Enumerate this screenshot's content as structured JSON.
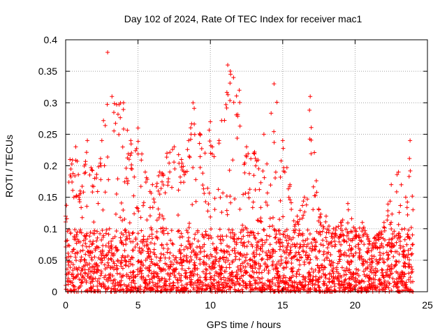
{
  "chart_data": {
    "type": "scatter",
    "title": "Day 102 of 2024, Rate Of TEC Index for receiver mac1",
    "xlabel": "GPS time / hours",
    "ylabel": "ROTI / TECUs",
    "xlim": [
      0,
      25
    ],
    "ylim": [
      0,
      0.4
    ],
    "xticks": [
      0,
      5,
      10,
      15,
      20,
      25
    ],
    "xtick_labels": [
      "0",
      "5",
      "10",
      "15",
      "20",
      "25"
    ],
    "yticks": [
      0,
      0.05,
      0.1,
      0.15,
      0.2,
      0.25,
      0.3,
      0.35,
      0.4
    ],
    "ytick_labels": [
      "0",
      "0.05",
      "0.1",
      "0.15",
      "0.2",
      "0.25",
      "0.3",
      "0.35",
      "0.4"
    ],
    "grid": true,
    "marker": "+",
    "series": [
      {
        "color": "#ff0000",
        "x_range": [
          0,
          24
        ],
        "envelope": [
          {
            "x": 0.0,
            "y": 0.12
          },
          {
            "x": 0.3,
            "y": 0.21
          },
          {
            "x": 0.7,
            "y": 0.23
          },
          {
            "x": 1.0,
            "y": 0.16
          },
          {
            "x": 1.5,
            "y": 0.24
          },
          {
            "x": 2.0,
            "y": 0.18
          },
          {
            "x": 2.5,
            "y": 0.24
          },
          {
            "x": 2.9,
            "y": 0.38
          },
          {
            "x": 3.2,
            "y": 0.31
          },
          {
            "x": 4.0,
            "y": 0.3
          },
          {
            "x": 4.5,
            "y": 0.24
          },
          {
            "x": 5.0,
            "y": 0.26
          },
          {
            "x": 5.5,
            "y": 0.19
          },
          {
            "x": 6.0,
            "y": 0.17
          },
          {
            "x": 6.5,
            "y": 0.19
          },
          {
            "x": 7.0,
            "y": 0.22
          },
          {
            "x": 7.5,
            "y": 0.23
          },
          {
            "x": 8.0,
            "y": 0.21
          },
          {
            "x": 8.5,
            "y": 0.24
          },
          {
            "x": 8.8,
            "y": 0.3
          },
          {
            "x": 9.3,
            "y": 0.25
          },
          {
            "x": 10.0,
            "y": 0.27
          },
          {
            "x": 10.6,
            "y": 0.24
          },
          {
            "x": 11.2,
            "y": 0.36
          },
          {
            "x": 11.6,
            "y": 0.34
          },
          {
            "x": 12.0,
            "y": 0.32
          },
          {
            "x": 12.5,
            "y": 0.23
          },
          {
            "x": 13.0,
            "y": 0.22
          },
          {
            "x": 13.7,
            "y": 0.25
          },
          {
            "x": 14.4,
            "y": 0.33
          },
          {
            "x": 15.0,
            "y": 0.24
          },
          {
            "x": 15.5,
            "y": 0.17
          },
          {
            "x": 16.0,
            "y": 0.12
          },
          {
            "x": 16.5,
            "y": 0.15
          },
          {
            "x": 16.9,
            "y": 0.31
          },
          {
            "x": 17.5,
            "y": 0.13
          },
          {
            "x": 18.0,
            "y": 0.12
          },
          {
            "x": 18.5,
            "y": 0.1
          },
          {
            "x": 19.0,
            "y": 0.11
          },
          {
            "x": 19.5,
            "y": 0.14
          },
          {
            "x": 20.0,
            "y": 0.1
          },
          {
            "x": 20.5,
            "y": 0.11
          },
          {
            "x": 21.0,
            "y": 0.08
          },
          {
            "x": 21.5,
            "y": 0.09
          },
          {
            "x": 22.0,
            "y": 0.11
          },
          {
            "x": 22.5,
            "y": 0.17
          },
          {
            "x": 23.0,
            "y": 0.19
          },
          {
            "x": 23.5,
            "y": 0.15
          },
          {
            "x": 23.8,
            "y": 0.24
          },
          {
            "x": 24.0,
            "y": 0.13
          }
        ],
        "typical_range": [
          0,
          0.1
        ]
      }
    ]
  }
}
